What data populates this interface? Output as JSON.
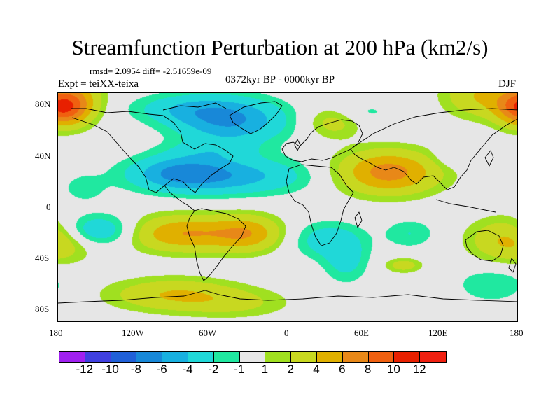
{
  "title": "Streamfunction Perturbation at 200 hPa (km2/s)",
  "stats_line": "rmsd= 2.0954 diff= -2.51659e-09",
  "experiment": "Expt = teiXX-teixa",
  "period": "0372kyr BP - 0000kyr BP",
  "season": "DJF",
  "lat_labels": [
    "80N",
    "40N",
    "0",
    "40S",
    "80S"
  ],
  "lon_labels": [
    "180",
    "120W",
    "60W",
    "0",
    "60E",
    "120E",
    "180"
  ],
  "colorbar": {
    "labels": [
      "-12",
      "-10",
      "-8",
      "-6",
      "-4",
      "-2",
      "-1",
      "1",
      "2",
      "4",
      "6",
      "8",
      "10",
      "12"
    ],
    "colors": [
      "#a020f0",
      "#4040e0",
      "#2060d8",
      "#1888d8",
      "#18b0e0",
      "#20d8d8",
      "#20e8a0",
      "#e6e6e6",
      "#a0e020",
      "#c8d820",
      "#e0b000",
      "#e88818",
      "#f06010",
      "#e82000",
      "#f02010"
    ]
  },
  "chart_data": {
    "type": "map",
    "projection": "cylindrical equidistant",
    "variable": "200 hPa streamfunction perturbation",
    "units": "km2/s",
    "lat_range": [
      -90,
      90
    ],
    "lon_range": [
      -180,
      180
    ],
    "levels": [
      -12,
      -10,
      -8,
      -6,
      -4,
      -2,
      -1,
      1,
      2,
      4,
      6,
      8,
      10,
      12
    ],
    "anomalies": [
      {
        "lon": 150,
        "lat": 88,
        "value": 4,
        "sx": 20,
        "sy": 12
      },
      {
        "lon": -165,
        "lat": 85,
        "value": 4,
        "sx": 15,
        "sy": 12
      },
      {
        "lon": -172,
        "lat": 78,
        "value": 5,
        "sx": 12,
        "sy": 10
      },
      {
        "lon": 175,
        "lat": 78,
        "value": 4,
        "sx": 12,
        "sy": 10
      },
      {
        "lon": -45,
        "lat": 68,
        "value": -6,
        "sx": 30,
        "sy": 12
      },
      {
        "lon": -80,
        "lat": 78,
        "value": -3,
        "sx": 30,
        "sy": 8
      },
      {
        "lon": 35,
        "lat": 68,
        "value": 3,
        "sx": 15,
        "sy": 9
      },
      {
        "lon": 55,
        "lat": 75,
        "value": -1.5,
        "sx": 20,
        "sy": 6
      },
      {
        "lon": -50,
        "lat": 25,
        "value": -5,
        "sx": 45,
        "sy": 10
      },
      {
        "lon": -85,
        "lat": 28,
        "value": -4,
        "sx": 25,
        "sy": 9
      },
      {
        "lon": -60,
        "lat": 45,
        "value": -2,
        "sx": 25,
        "sy": 6
      },
      {
        "lon": 78,
        "lat": 28,
        "value": 7,
        "sx": 28,
        "sy": 12
      },
      {
        "lon": 130,
        "lat": 40,
        "value": -1.5,
        "sx": 12,
        "sy": 6
      },
      {
        "lon": -160,
        "lat": 15,
        "value": -1.5,
        "sx": 12,
        "sy": 8
      },
      {
        "lon": -150,
        "lat": -18,
        "value": -5,
        "sx": 22,
        "sy": 9
      },
      {
        "lon": -80,
        "lat": -20,
        "value": 6,
        "sx": 35,
        "sy": 10
      },
      {
        "lon": -30,
        "lat": -20,
        "value": 4,
        "sx": 18,
        "sy": 10
      },
      {
        "lon": 30,
        "lat": -25,
        "value": -3,
        "sx": 20,
        "sy": 10
      },
      {
        "lon": 45,
        "lat": -42,
        "value": -2.5,
        "sx": 12,
        "sy": 12
      },
      {
        "lon": 95,
        "lat": -20,
        "value": -2,
        "sx": 14,
        "sy": 8
      },
      {
        "lon": 175,
        "lat": -25,
        "value": 5,
        "sx": 22,
        "sy": 12
      },
      {
        "lon": 160,
        "lat": -60,
        "value": -2,
        "sx": 20,
        "sy": 10
      },
      {
        "lon": -90,
        "lat": -68,
        "value": 4,
        "sx": 35,
        "sy": 9
      },
      {
        "lon": -40,
        "lat": -75,
        "value": 2,
        "sx": 30,
        "sy": 8
      },
      {
        "lon": 90,
        "lat": -45,
        "value": 3,
        "sx": 10,
        "sy": 4
      }
    ]
  }
}
